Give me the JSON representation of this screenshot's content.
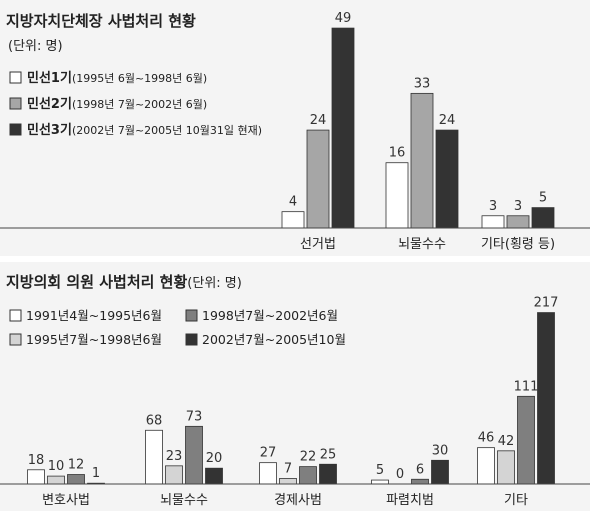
{
  "chart_data": [
    {
      "type": "bar",
      "title": "지방자치단체장 사법처리 현황",
      "subtitle": "(단위: 명)",
      "categories": [
        "선거법",
        "뇌물수수",
        "기타(횡령 등)"
      ],
      "series": [
        {
          "name": "민선1기",
          "note": "(1995년 6월~1998년 6월)",
          "color": "#ffffff",
          "values": [
            4,
            16,
            3
          ]
        },
        {
          "name": "민선2기",
          "note": "(1998년 7월~2002년 6월)",
          "color": "#a6a6a6",
          "values": [
            24,
            33,
            3
          ]
        },
        {
          "name": "민선3기",
          "note": "(2002년 7월~2005년 10월31일 현재)",
          "color": "#333333",
          "values": [
            49,
            24,
            5
          ]
        }
      ],
      "legend": "top-left",
      "grid": false
    },
    {
      "type": "bar",
      "title": "지방의회 의원 사법처리 현황",
      "subtitle": "(단위: 명)",
      "categories": [
        "변호사법",
        "뇌물수수",
        "경제사범",
        "파렴치범",
        "기타"
      ],
      "series": [
        {
          "name": "1991년4월~1995년6월",
          "color": "#ffffff",
          "values": [
            18,
            68,
            27,
            5,
            46
          ]
        },
        {
          "name": "1995년7월~1998년6월",
          "color": "#d4d4d4",
          "values": [
            10,
            23,
            7,
            0,
            42
          ]
        },
        {
          "name": "1998년7월~2002년6월",
          "color": "#7f7f7f",
          "values": [
            12,
            73,
            22,
            6,
            111
          ]
        },
        {
          "name": "2002년7월~2005년10월",
          "color": "#333333",
          "values": [
            1,
            20,
            25,
            30,
            217
          ]
        }
      ],
      "legend": "top-left",
      "grid": false
    }
  ]
}
